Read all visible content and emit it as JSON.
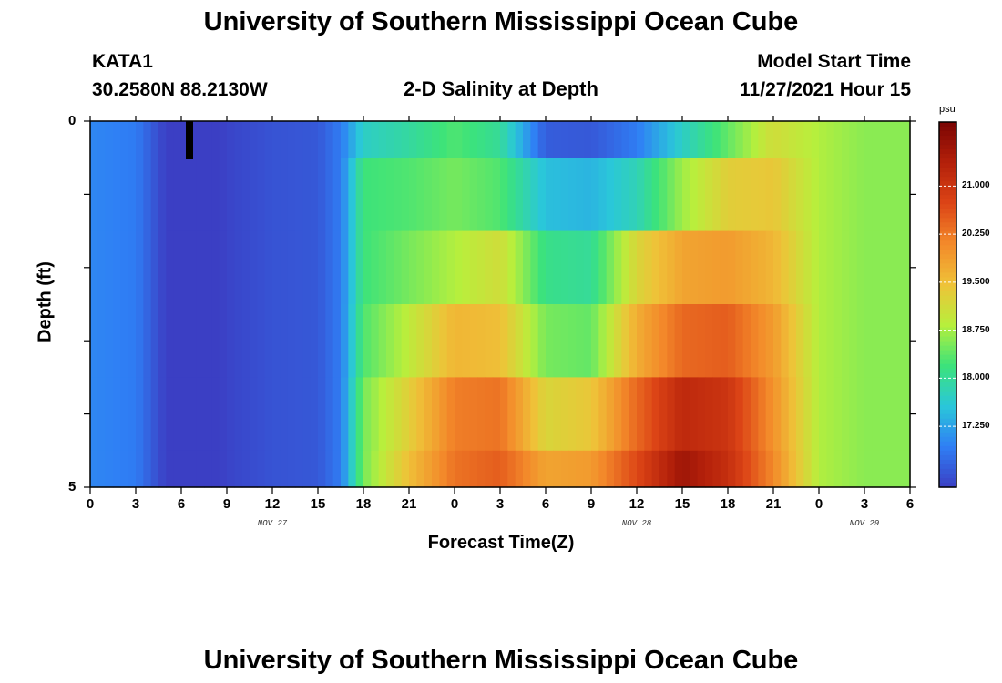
{
  "page": {
    "title": "University of Southern Mississippi Ocean Cube",
    "station": "KATA1",
    "coords": "30.2580N  88.2130W",
    "subtitle": "2-D Salinity at Depth",
    "model_label": "Model Start Time",
    "model_time": "11/27/2021 Hour 15",
    "footer_title": "University of Southern Mississippi Ocean Cube"
  },
  "chart_data": {
    "type": "heatmap",
    "title": "2-D Salinity at Depth",
    "xlabel": "Forecast Time(Z)",
    "ylabel": "Depth (ft)",
    "x_hours": [
      0,
      54
    ],
    "y_range": [
      0,
      5
    ],
    "xtick_labels": [
      "0",
      "3",
      "6",
      "9",
      "12",
      "15",
      "18",
      "21",
      "0",
      "3",
      "6",
      "9",
      "12",
      "15",
      "18",
      "21",
      "0",
      "3",
      "6"
    ],
    "ytick_labels": [
      "0",
      "5"
    ],
    "date_labels": [
      {
        "label": "NOV 27",
        "hour": 12
      },
      {
        "label": "NOV 28",
        "hour": 36
      },
      {
        "label": "NOV 29",
        "hour": 51
      }
    ],
    "colorbar": {
      "unit": "psu",
      "min": 16.3,
      "max": 22.0,
      "tick_values": [
        17.25,
        18.0,
        18.75,
        19.5,
        20.25,
        21.0
      ],
      "tick_labels": [
        "17.250",
        "18.000",
        "18.750",
        "19.500",
        "20.250",
        "21.000"
      ],
      "colors": [
        "#3b3fc4",
        "#2f7ff5",
        "#2ac7d9",
        "#3ce37a",
        "#b8ef3c",
        "#efc238",
        "#f3892a",
        "#dc4416",
        "#b3200a",
        "#7a0403"
      ]
    },
    "layer_depths": [
      "0-0.5",
      "0.5-1.5",
      "1.5-2.5",
      "2.5-3.5",
      "3.5-4.5",
      "4.5-5"
    ],
    "salinity": [
      {
        "depth_layer": "0-0.5",
        "hours": [
          0,
          3,
          6,
          9,
          12,
          15,
          16.5,
          18,
          21,
          24,
          27,
          30,
          33,
          36,
          39,
          42,
          45,
          48,
          51,
          54
        ],
        "psu": [
          17.0,
          16.9,
          16.0,
          16.35,
          16.5,
          16.55,
          16.9,
          17.7,
          17.95,
          18.3,
          18.0,
          16.6,
          16.55,
          16.9,
          17.7,
          18.4,
          19.1,
          18.8,
          18.6,
          18.6
        ]
      },
      {
        "depth_layer": "0.5-1.5",
        "hours": [
          0,
          3,
          6,
          9,
          12,
          15,
          16.5,
          18,
          21,
          24,
          27,
          30,
          33,
          36,
          39,
          42,
          45,
          48,
          51,
          54
        ],
        "psu": [
          17.0,
          16.9,
          16.0,
          16.35,
          16.5,
          16.55,
          16.9,
          18.2,
          18.3,
          18.5,
          18.3,
          17.5,
          17.4,
          17.8,
          18.7,
          19.3,
          19.4,
          18.8,
          18.6,
          18.6
        ]
      },
      {
        "depth_layer": "1.5-2.5",
        "hours": [
          0,
          3,
          6,
          9,
          12,
          15,
          16.5,
          18,
          21,
          24,
          27,
          30,
          33,
          36,
          39,
          42,
          45,
          48,
          51,
          54
        ],
        "psu": [
          17.0,
          16.9,
          16.0,
          16.35,
          16.5,
          16.55,
          16.9,
          18.2,
          18.5,
          18.8,
          19.1,
          18.1,
          18.0,
          19.2,
          19.8,
          19.9,
          19.6,
          18.8,
          18.6,
          18.6
        ]
      },
      {
        "depth_layer": "2.5-3.5",
        "hours": [
          0,
          3,
          6,
          9,
          12,
          15,
          16.5,
          18,
          21,
          24,
          27,
          30,
          33,
          36,
          39,
          42,
          45,
          48,
          51,
          54
        ],
        "psu": [
          17.0,
          16.9,
          16.0,
          16.35,
          16.5,
          16.55,
          16.9,
          18.3,
          18.9,
          19.6,
          19.5,
          18.5,
          18.4,
          19.7,
          20.4,
          20.5,
          19.9,
          18.8,
          18.6,
          18.6
        ]
      },
      {
        "depth_layer": "3.5-4.5",
        "hours": [
          0,
          3,
          6,
          9,
          12,
          15,
          16.5,
          18,
          21,
          24,
          27,
          30,
          33,
          36,
          39,
          42,
          45,
          48,
          51,
          54
        ],
        "psu": [
          17.0,
          16.9,
          16.0,
          16.35,
          16.5,
          16.55,
          16.9,
          18.5,
          19.3,
          20.2,
          20.3,
          19.2,
          19.4,
          20.4,
          21.2,
          21.0,
          20.0,
          18.8,
          18.6,
          18.6
        ]
      },
      {
        "depth_layer": "4.5-5",
        "hours": [
          0,
          3,
          6,
          9,
          12,
          15,
          16.5,
          18,
          21,
          24,
          27,
          30,
          33,
          36,
          39,
          42,
          45,
          48,
          51,
          54
        ],
        "psu": [
          17.0,
          16.9,
          16.0,
          16.35,
          16.5,
          16.55,
          16.9,
          18.5,
          19.5,
          20.3,
          20.5,
          19.8,
          19.9,
          20.7,
          21.6,
          21.1,
          20.1,
          18.8,
          18.6,
          18.6
        ]
      }
    ]
  }
}
